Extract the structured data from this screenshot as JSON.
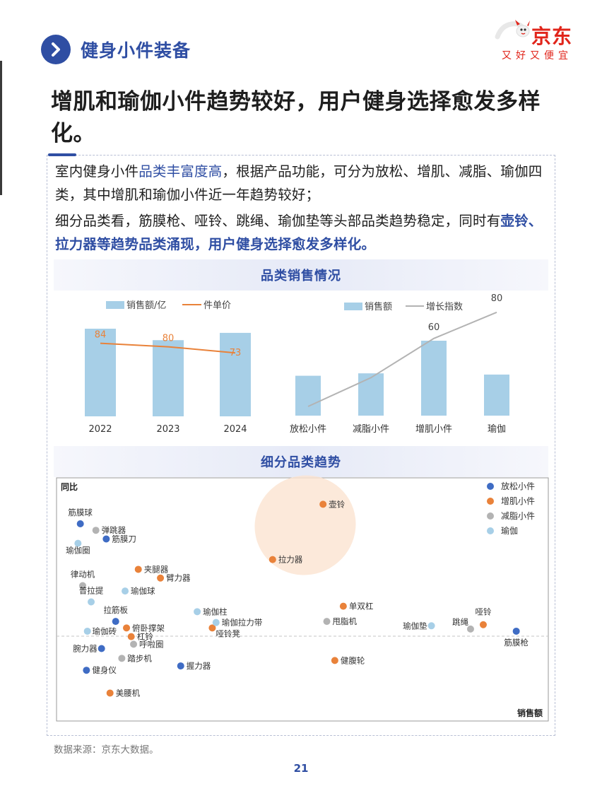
{
  "header": {
    "section_title": "健身小件装备"
  },
  "logo": {
    "brand": "京东",
    "slogan": "又好又便宜"
  },
  "headline": "增肌和瑜伽小件趋势较好，用户健身选择愈发多样化。",
  "body": {
    "p1_a": "室内健身小件",
    "p1_b": "品类丰富度高",
    "p1_c": "，根据产品功能，可分为放松、增肌、减脂、瑜伽四类，其中增肌和瑜伽小件近一年趋势较好；",
    "p2_a": "细分品类看，筋膜枪、哑铃、跳绳、瑜伽垫等头部品类趋势稳定，同时有",
    "p2_b": "壶铃、拉力器等趋势品类涌现，用户健身选择愈发多样化。"
  },
  "bands": {
    "b1": "品类销售情况",
    "b2": "细分品类趋势"
  },
  "colors": {
    "accent": "#2f4ea3",
    "bar": "#a7cfe7",
    "orange": "#e9823a",
    "gray": "#b3b3b3",
    "blue_dot": "#3f6cc4",
    "light_blue_dot": "#a7cfe7",
    "brand_red": "#e1251b"
  },
  "chart_data": [
    {
      "type": "bar",
      "categories": [
        "2022",
        "2023",
        "2024"
      ],
      "series": [
        {
          "name": "销售额/亿",
          "type": "bar",
          "values": [
            84,
            73,
            80
          ]
        },
        {
          "name": "件单价",
          "type": "line",
          "values": [
            84,
            80,
            73
          ]
        }
      ],
      "data_labels": [
        "84",
        "80",
        "73"
      ],
      "ylim": [
        0,
        100
      ]
    },
    {
      "type": "bar",
      "categories": [
        "放松小件",
        "减脂小件",
        "增肌小件",
        "瑜伽"
      ],
      "series": [
        {
          "name": "销售额",
          "type": "bar",
          "values": [
            33,
            35,
            62,
            34
          ]
        },
        {
          "name": "增长指数",
          "type": "line",
          "values": [
            8,
            30,
            60,
            80
          ]
        }
      ],
      "data_labels": [
        "60",
        "80"
      ],
      "ylim": [
        0,
        100
      ]
    },
    {
      "type": "scatter",
      "xlabel": "销售额",
      "ylabel": "同比",
      "grid": false,
      "legend_position": "top-right",
      "highlight_label": "",
      "xlim": [
        0,
        100
      ],
      "ylim": [
        0,
        100
      ],
      "series": [
        {
          "name": "放松小件",
          "color_key": "blue_dot",
          "points": [
            {
              "label": "筋膜球",
              "x": 4,
              "y": 86
            },
            {
              "label": "筋膜刀",
              "x": 9.5,
              "y": 79
            },
            {
              "label": "拉筋板",
              "x": 11.5,
              "y": 41
            },
            {
              "label": "腕力器",
              "x": 8.5,
              "y": 28.5
            },
            {
              "label": "健身仪",
              "x": 5.3,
              "y": 18.5
            },
            {
              "label": "握力器",
              "x": 25.3,
              "y": 20.5
            },
            {
              "label": "筋膜枪",
              "x": 96.5,
              "y": 36.5
            }
          ]
        },
        {
          "name": "增肌小件",
          "color_key": "orange",
          "points": [
            {
              "label": "壶铃",
              "x": 55.5,
              "y": 95
            },
            {
              "label": "拉力器",
              "x": 44.8,
              "y": 69.5
            },
            {
              "label": "夹腿器",
              "x": 16.3,
              "y": 65
            },
            {
              "label": "臂力器",
              "x": 21,
              "y": 61
            },
            {
              "label": "单双杠",
              "x": 59.8,
              "y": 48
            },
            {
              "label": "俯卧撑架",
              "x": 13.8,
              "y": 38
            },
            {
              "label": "杠铃",
              "x": 14.8,
              "y": 34
            },
            {
              "label": "哑铃凳",
              "x": 32,
              "y": 38
            },
            {
              "label": "哑铃",
              "x": 89.5,
              "y": 39.5
            },
            {
              "label": "健腹轮",
              "x": 58,
              "y": 23
            },
            {
              "label": "美腰机",
              "x": 10.3,
              "y": 8
            }
          ]
        },
        {
          "name": "减脂小件",
          "color_key": "gray",
          "points": [
            {
              "label": "弹跳器",
              "x": 7.3,
              "y": 83
            },
            {
              "label": "律动机",
              "x": 4.5,
              "y": 57.5
            },
            {
              "label": "甩脂机",
              "x": 56.3,
              "y": 41
            },
            {
              "label": "呼啦圈",
              "x": 15.3,
              "y": 30.5
            },
            {
              "label": "踏步机",
              "x": 12.8,
              "y": 24
            },
            {
              "label": "跳绳",
              "x": 86.8,
              "y": 37.5
            }
          ]
        },
        {
          "name": "瑜伽",
          "color_key": "light_blue_dot",
          "points": [
            {
              "label": "瑜伽圈",
              "x": 3.5,
              "y": 77
            },
            {
              "label": "瑜伽球",
              "x": 13.5,
              "y": 55
            },
            {
              "label": "普拉提",
              "x": 6.3,
              "y": 50
            },
            {
              "label": "瑜伽柱",
              "x": 28.8,
              "y": 45.5
            },
            {
              "label": "瑜伽拉力带",
              "x": 32.8,
              "y": 40.5
            },
            {
              "label": "瑜伽砖",
              "x": 5.5,
              "y": 36.5
            },
            {
              "label": "瑜伽垫",
              "x": 78.5,
              "y": 39
            }
          ]
        }
      ]
    }
  ],
  "footnote": "数据来源：京东大数据。",
  "page_number": "21"
}
